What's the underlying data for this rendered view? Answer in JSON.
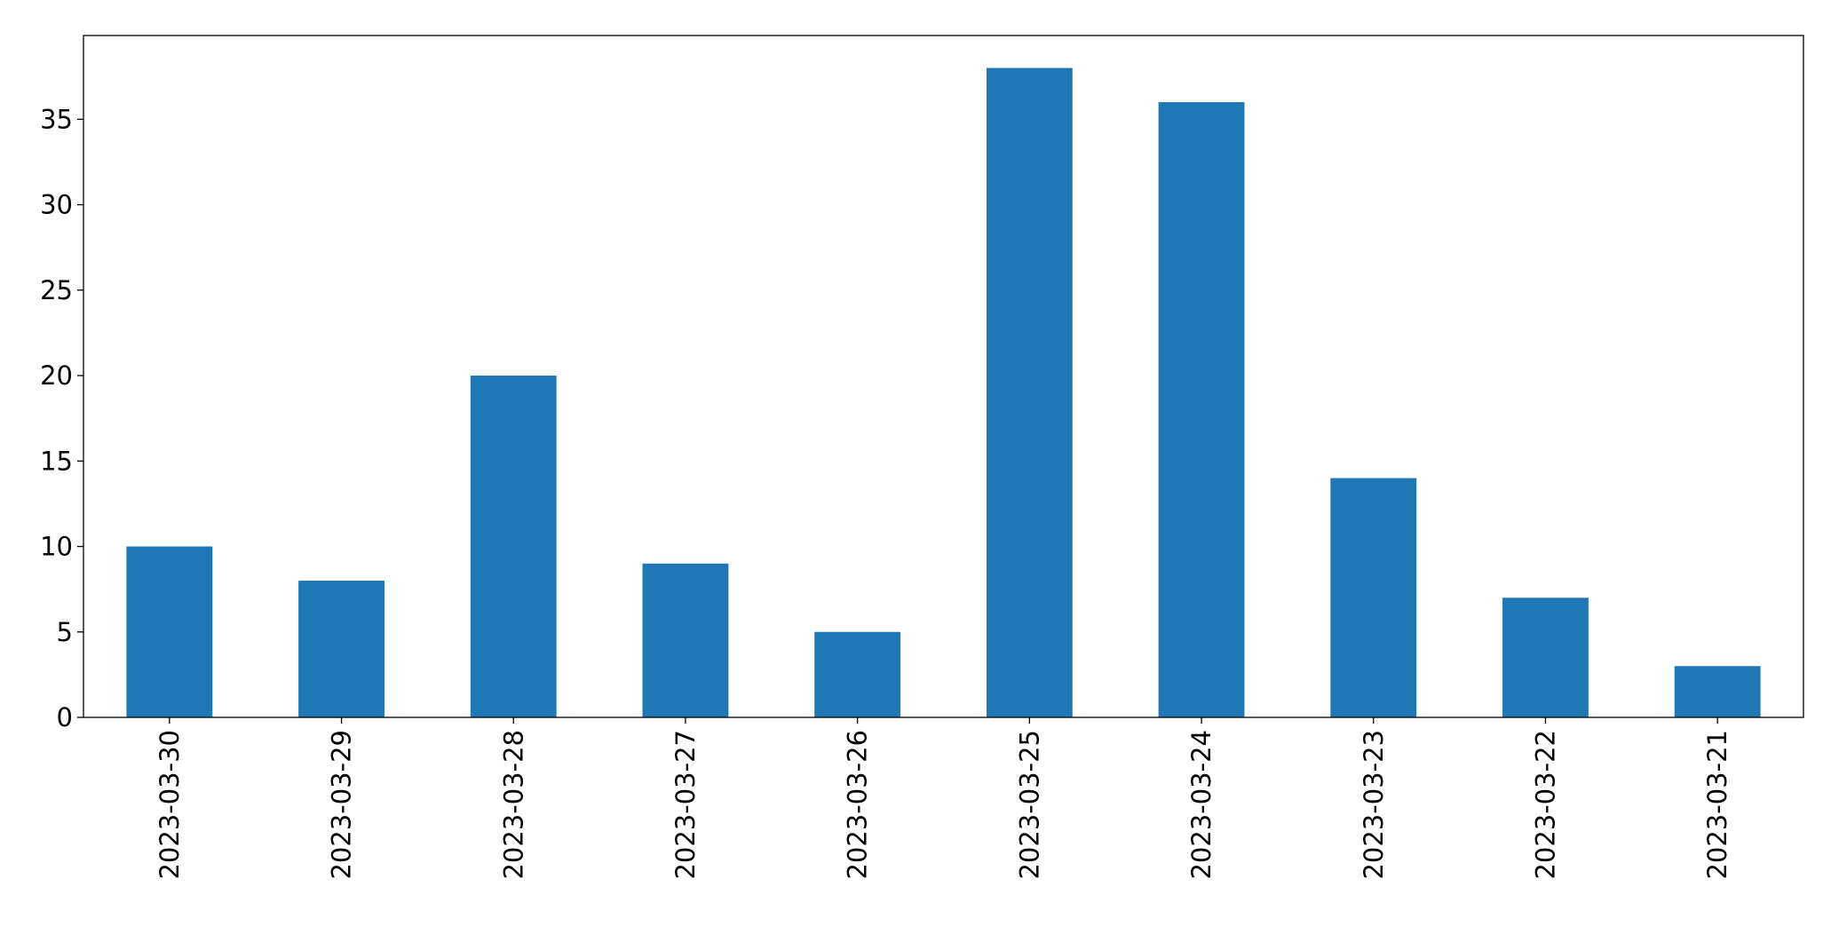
{
  "chart_data": {
    "type": "bar",
    "categories": [
      "2023-03-30",
      "2023-03-29",
      "2023-03-28",
      "2023-03-27",
      "2023-03-26",
      "2023-03-25",
      "2023-03-24",
      "2023-03-23",
      "2023-03-22",
      "2023-03-21"
    ],
    "values": [
      10,
      8,
      20,
      9,
      5,
      38,
      36,
      14,
      7,
      3
    ],
    "color": "#1f77b4",
    "ylim": [
      0,
      39.9
    ],
    "yticks": [
      0,
      5,
      10,
      15,
      20,
      25,
      30,
      35
    ],
    "grid": false
  }
}
